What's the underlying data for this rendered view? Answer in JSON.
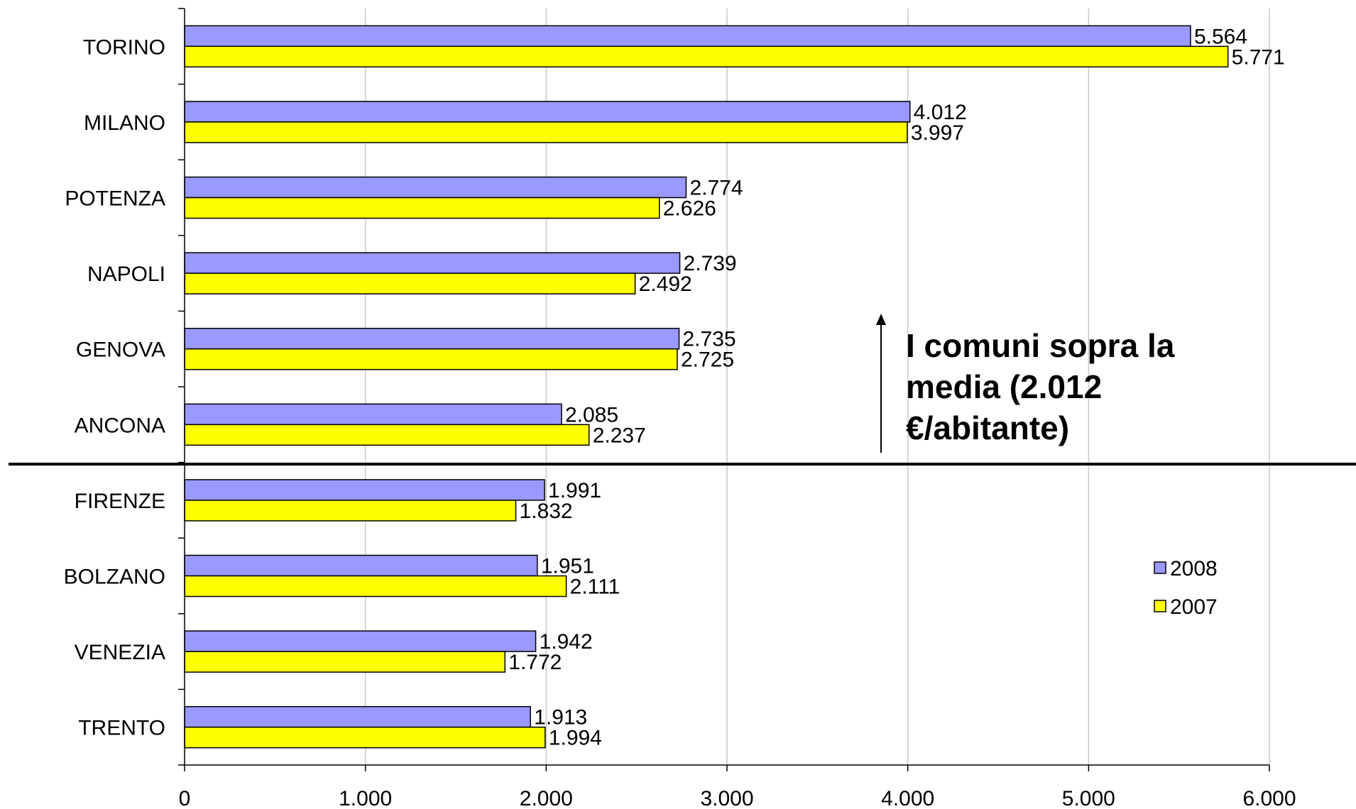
{
  "chart_data": {
    "type": "bar",
    "orientation": "horizontal",
    "categories": [
      "TORINO",
      "MILANO",
      "POTENZA",
      "NAPOLI",
      "GENOVA",
      "ANCONA",
      "FIRENZE",
      "BOLZANO",
      "VENEZIA",
      "TRENTO"
    ],
    "series": [
      {
        "name": "2008",
        "color": "#9999ff",
        "values": [
          5564,
          4012,
          2774,
          2739,
          2735,
          2085,
          1991,
          1951,
          1942,
          1913
        ],
        "labels": [
          "5.564",
          "4.012",
          "2.774",
          "2.739",
          "2.735",
          "2.085",
          "1.991",
          "1.951",
          "1.942",
          "1.913"
        ]
      },
      {
        "name": "2007",
        "color": "#ffff00",
        "values": [
          5771,
          3997,
          2626,
          2492,
          2725,
          2237,
          1832,
          2111,
          1772,
          1994
        ],
        "labels": [
          "5.771",
          "3.997",
          "2.626",
          "2.492",
          "2.725",
          "2.237",
          "1.832",
          "2.111",
          "1.772",
          "1.994"
        ]
      }
    ],
    "xlim": [
      0,
      6000
    ],
    "xticks": [
      0,
      1000,
      2000,
      3000,
      4000,
      5000,
      6000
    ],
    "xtick_labels": [
      "0",
      "1.000",
      "2.000",
      "3.000",
      "4.000",
      "5.000",
      "6.000"
    ],
    "grid": "vertical",
    "legend": {
      "position": "right",
      "entries": [
        "2008",
        "2007"
      ]
    },
    "separator_after_category": "ANCONA",
    "annotation": {
      "lines": [
        "I comuni sopra la",
        "media (2.012",
        "€/abitante)"
      ],
      "arrow": "up"
    }
  }
}
